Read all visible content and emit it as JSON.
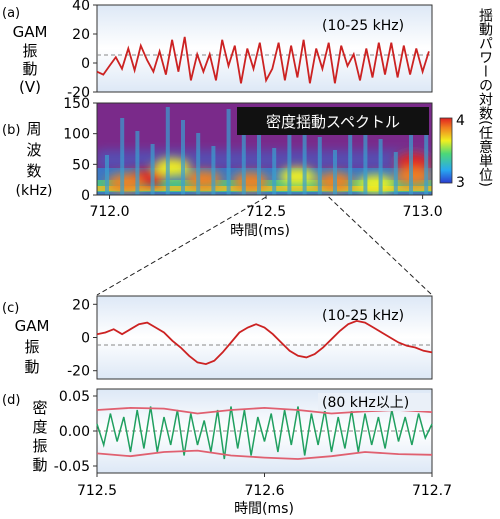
{
  "chart_data": [
    {
      "type": "line",
      "panel_label": "(a)",
      "ylabel_lines": [
        "GAM",
        "振",
        "動",
        "(V)"
      ],
      "annotation": "(10-25 kHz)",
      "ylim": [
        -20,
        40
      ],
      "yticks": [
        "40",
        "20",
        "0",
        "-20"
      ],
      "ytick_values": [
        40,
        20,
        0,
        -20
      ],
      "xlim": [
        711.96,
        713.03
      ],
      "zero_line": true,
      "series": [
        {
          "color": "#cc2222",
          "x": [
            711.96,
            711.98,
            712.0,
            712.02,
            712.04,
            712.06,
            712.08,
            712.1,
            712.12,
            712.14,
            712.16,
            712.18,
            712.2,
            712.22,
            712.24,
            712.26,
            712.28,
            712.3,
            712.32,
            712.34,
            712.36,
            712.38,
            712.4,
            712.42,
            712.44,
            712.46,
            712.48,
            712.5,
            712.52,
            712.54,
            712.56,
            712.58,
            712.6,
            712.62,
            712.64,
            712.66,
            712.68,
            712.7,
            712.72,
            712.74,
            712.76,
            712.78,
            712.8,
            712.82,
            712.84,
            712.86,
            712.88,
            712.9,
            712.92,
            712.94,
            712.96,
            712.98,
            713.0,
            713.02
          ],
          "y": [
            -6,
            -8,
            -2,
            4,
            -4,
            10,
            -5,
            12,
            2,
            -6,
            8,
            -8,
            16,
            -6,
            18,
            -12,
            6,
            -6,
            6,
            -12,
            16,
            -2,
            12,
            -14,
            10,
            -4,
            14,
            -12,
            -4,
            14,
            -12,
            12,
            -10,
            16,
            -14,
            10,
            -4,
            14,
            -14,
            12,
            -2,
            6,
            -12,
            10,
            -10,
            14,
            -8,
            14,
            -10,
            12,
            -8,
            10,
            -6,
            8
          ]
        }
      ]
    },
    {
      "type": "heatmap",
      "panel_label": "(b)",
      "ylabel_lines": [
        "周",
        "波",
        "数",
        "(kHz)"
      ],
      "title": "密度揺動スペクトル",
      "ylim": [
        0,
        150
      ],
      "yticks": [
        "150",
        "100",
        "50",
        "0"
      ],
      "ytick_values": [
        150,
        100,
        50,
        0
      ],
      "xlim": [
        711.96,
        713.03
      ],
      "xticks": [
        "712.0",
        "712.5",
        "713.0"
      ],
      "xtick_values": [
        712.0,
        712.5,
        713.0
      ],
      "xlabel": "時間(ms)",
      "colorbar": {
        "label": "揺動パワーの対数(任意単位)",
        "ticks": [
          "4",
          "3"
        ],
        "tick_values": [
          4,
          3
        ],
        "range": [
          3,
          4
        ],
        "colors": [
          "#2a3cd0",
          "#28a8f0",
          "#4cd878",
          "#f0f020",
          "#f08020",
          "#e02020"
        ]
      },
      "background_color": "#7a2a8a",
      "blobs": [
        {
          "x": 712.12,
          "f": 28,
          "value": 3.9
        },
        {
          "x": 712.05,
          "f": 20,
          "value": 3.8
        },
        {
          "x": 712.3,
          "f": 25,
          "value": 3.7
        },
        {
          "x": 712.45,
          "f": 22,
          "value": 3.85
        },
        {
          "x": 712.72,
          "f": 22,
          "value": 3.7
        },
        {
          "x": 712.6,
          "f": 30,
          "value": 3.6
        },
        {
          "x": 712.97,
          "f": 55,
          "value": 4.0
        },
        {
          "x": 712.97,
          "f": 30,
          "value": 3.8
        },
        {
          "x": 712.2,
          "f": 45,
          "value": 3.5
        },
        {
          "x": 712.85,
          "f": 18,
          "value": 3.6
        }
      ]
    },
    {
      "type": "line",
      "panel_label": "(c)",
      "ylabel_lines": [
        "GAM",
        "振",
        "動"
      ],
      "annotation": "(10-25 kHz)",
      "ylim": [
        -25,
        25
      ],
      "yticks": [
        "20",
        "0",
        "-20"
      ],
      "ytick_values": [
        20,
        0,
        -20
      ],
      "xlim": [
        712.5,
        712.7
      ],
      "zero_line": true,
      "series": [
        {
          "color": "#cc2222",
          "x": [
            712.5,
            712.505,
            712.51,
            712.515,
            712.52,
            712.525,
            712.53,
            712.535,
            712.54,
            712.545,
            712.55,
            712.555,
            712.56,
            712.565,
            712.57,
            712.575,
            712.58,
            712.585,
            712.59,
            712.595,
            712.6,
            712.605,
            712.61,
            712.615,
            712.62,
            712.625,
            712.63,
            712.635,
            712.64,
            712.645,
            712.65,
            712.655,
            712.66,
            712.665,
            712.67,
            712.675,
            712.68,
            712.685,
            712.69,
            712.695,
            712.7
          ],
          "y": [
            2,
            3,
            5,
            2,
            5,
            8,
            9,
            6,
            3,
            -2,
            -6,
            -11,
            -15,
            -16,
            -14,
            -9,
            -3,
            3,
            6,
            8,
            6,
            2,
            -3,
            -8,
            -11,
            -12,
            -10,
            -6,
            -1,
            4,
            8,
            10,
            9,
            6,
            3,
            0,
            -3,
            -5,
            -6,
            -8,
            -9
          ]
        }
      ]
    },
    {
      "type": "line",
      "panel_label": "(d)",
      "ylabel_lines": [
        "密",
        "度",
        "振",
        "動"
      ],
      "annotation": "(80 kHz以上)",
      "ylim": [
        -0.06,
        0.06
      ],
      "yticks": [
        "0.05",
        "0.00",
        "-0.05"
      ],
      "ytick_values": [
        0.05,
        0,
        -0.05
      ],
      "xlim": [
        712.5,
        712.7
      ],
      "xticks": [
        "712.5",
        "712.6",
        "712.7"
      ],
      "xtick_values": [
        712.5,
        712.6,
        712.7
      ],
      "xlabel": "時間(ms)",
      "zero_line": true,
      "series": [
        {
          "color": "#20a060",
          "x": [
            712.5,
            712.504,
            712.508,
            712.512,
            712.516,
            712.52,
            712.524,
            712.528,
            712.532,
            712.536,
            712.54,
            712.544,
            712.548,
            712.552,
            712.556,
            712.56,
            712.564,
            712.568,
            712.572,
            712.576,
            712.58,
            712.584,
            712.588,
            712.592,
            712.596,
            712.6,
            712.604,
            712.608,
            712.612,
            712.616,
            712.62,
            712.624,
            712.628,
            712.632,
            712.636,
            712.64,
            712.644,
            712.648,
            712.652,
            712.656,
            712.66,
            712.664,
            712.668,
            712.672,
            712.676,
            712.68,
            712.684,
            712.688,
            712.692,
            712.696,
            712.7
          ],
          "y": [
            0.01,
            -0.02,
            0.025,
            -0.015,
            0.02,
            -0.03,
            0.03,
            -0.025,
            0.035,
            -0.03,
            0.02,
            -0.02,
            0.03,
            -0.035,
            0.025,
            -0.02,
            0.015,
            -0.03,
            0.03,
            -0.04,
            0.035,
            -0.025,
            0.03,
            -0.035,
            0.02,
            -0.015,
            0.025,
            -0.03,
            0.03,
            -0.02,
            0.035,
            -0.035,
            0.025,
            -0.02,
            0.03,
            -0.03,
            0.02,
            -0.025,
            0.03,
            -0.03,
            0.025,
            -0.02,
            0.02,
            -0.025,
            0.03,
            -0.015,
            0.02,
            -0.02,
            0.025,
            -0.01,
            0.01
          ]
        },
        {
          "color": "#e06070",
          "x": [
            712.5,
            712.52,
            712.54,
            712.56,
            712.58,
            712.6,
            712.62,
            712.64,
            712.66,
            712.68,
            712.7
          ],
          "y": [
            0.03,
            0.033,
            0.032,
            0.025,
            0.03,
            0.033,
            0.03,
            0.025,
            0.028,
            0.03,
            0.027
          ]
        },
        {
          "color": "#e06070",
          "x": [
            712.5,
            712.52,
            712.54,
            712.56,
            712.58,
            712.6,
            712.62,
            712.64,
            712.66,
            712.68,
            712.7
          ],
          "y": [
            -0.032,
            -0.036,
            -0.03,
            -0.028,
            -0.035,
            -0.038,
            -0.04,
            -0.036,
            -0.03,
            -0.033,
            -0.034
          ]
        }
      ]
    }
  ]
}
